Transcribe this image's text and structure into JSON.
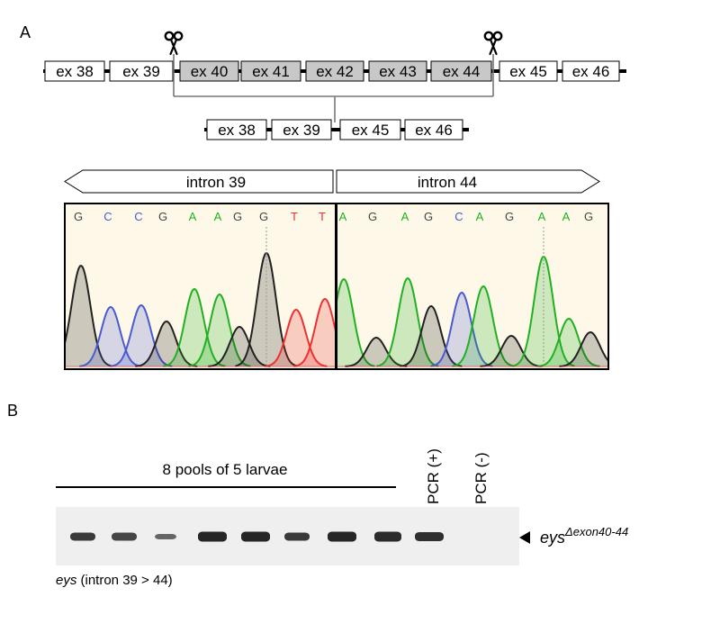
{
  "panel_a": {
    "label": "A",
    "top_exons": [
      "ex 38",
      "ex 39",
      "ex 40",
      "ex 41",
      "ex 42",
      "ex 43",
      "ex 44",
      "ex 45",
      "ex 46"
    ],
    "deleted_exons": [
      "ex 40",
      "ex 41",
      "ex 42",
      "ex 43",
      "ex 44"
    ],
    "bottom_exons": [
      "ex 38",
      "ex 39",
      "ex 45",
      "ex 46"
    ],
    "scissors_icon": "scissors-icon",
    "intron_left": "intron 39",
    "intron_right": "intron 44",
    "bases_left": [
      "G",
      "C",
      "C",
      "G",
      "A",
      "A",
      "G",
      "G",
      "T",
      "T"
    ],
    "bases_right": [
      "A",
      "G",
      "A",
      "G",
      "C",
      "A",
      "G",
      "A",
      "A",
      "G"
    ]
  },
  "panel_b": {
    "label": "B",
    "pools_label": "8 pools of 5 larvae",
    "pcr_pos": "PCR (+)",
    "pcr_neg": "PCR (-)",
    "band_label_main": "eys",
    "band_label_sup": "Δexon40-44",
    "gel_caption_italic": "eys",
    "gel_caption_rest": " (intron 39 > 44)"
  },
  "colors": {
    "A": "#22b022",
    "C": "#4a5ad0",
    "G": "#222222",
    "T": "#ee3030",
    "exon_fill": "#ffffff",
    "deleted_fill": "#c8c8c8",
    "chromatogram_bg": "#fdf8e8",
    "gel_bg": "#efefef",
    "band": "#1a1a1a"
  }
}
